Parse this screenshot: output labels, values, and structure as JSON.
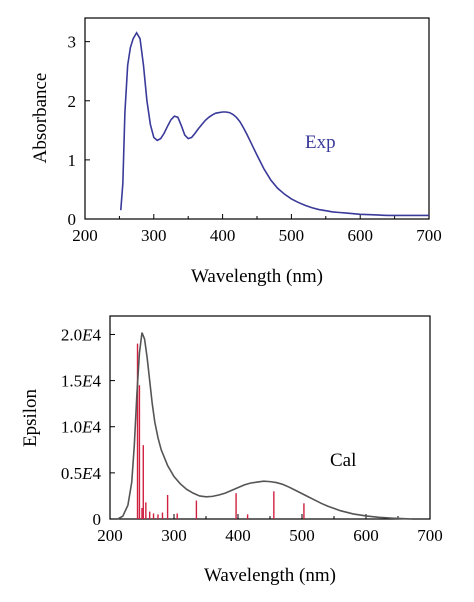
{
  "chart_data": [
    {
      "type": "line",
      "xlabel": "Wavelength (nm)",
      "ylabel": "Absorbance",
      "xlim": [
        200,
        700
      ],
      "ylim": [
        0,
        3.4
      ],
      "xticks": [
        "200",
        "300",
        "400",
        "500",
        "600",
        "700"
      ],
      "yticks": [
        "0",
        "1",
        "2",
        "3"
      ],
      "series_color": "#3a3a9a",
      "series": [
        {
          "name": "Exp",
          "x": [
            252,
            255,
            258,
            262,
            266,
            270,
            275,
            280,
            285,
            290,
            295,
            300,
            305,
            310,
            315,
            320,
            325,
            330,
            335,
            340,
            345,
            350,
            355,
            360,
            365,
            370,
            375,
            380,
            385,
            390,
            395,
            400,
            405,
            410,
            415,
            420,
            425,
            430,
            435,
            440,
            445,
            450,
            460,
            470,
            480,
            490,
            500,
            510,
            520,
            530,
            540,
            550,
            560,
            570,
            580,
            590,
            600,
            620,
            640,
            660,
            680,
            700
          ],
          "y": [
            0.15,
            0.6,
            1.8,
            2.6,
            2.9,
            3.05,
            3.15,
            3.05,
            2.6,
            2.0,
            1.6,
            1.38,
            1.33,
            1.36,
            1.45,
            1.57,
            1.68,
            1.74,
            1.72,
            1.58,
            1.42,
            1.36,
            1.38,
            1.45,
            1.53,
            1.6,
            1.67,
            1.72,
            1.76,
            1.79,
            1.8,
            1.81,
            1.81,
            1.8,
            1.77,
            1.72,
            1.65,
            1.55,
            1.44,
            1.32,
            1.2,
            1.08,
            0.85,
            0.66,
            0.52,
            0.42,
            0.34,
            0.28,
            0.23,
            0.19,
            0.16,
            0.14,
            0.12,
            0.11,
            0.1,
            0.09,
            0.08,
            0.07,
            0.06,
            0.06,
            0.06,
            0.06
          ]
        }
      ]
    },
    {
      "type": "line",
      "xlabel": "Wavelength (nm)",
      "ylabel": "Epsilon",
      "xlim": [
        200,
        700
      ],
      "ylim": [
        0,
        22000
      ],
      "xticks": [
        "200",
        "300",
        "400",
        "500",
        "600",
        "700"
      ],
      "yticks": [
        "0",
        "0.5E4",
        "1.0E4",
        "1.5E4",
        "2.0E4"
      ],
      "series_color": "#555555",
      "stick_color": "#d02040",
      "series": [
        {
          "name": "Cal",
          "x": [
            212,
            220,
            228,
            234,
            238,
            242,
            246,
            250,
            254,
            258,
            262,
            266,
            270,
            275,
            280,
            290,
            300,
            310,
            320,
            330,
            340,
            350,
            360,
            370,
            380,
            390,
            400,
            410,
            420,
            430,
            440,
            450,
            460,
            470,
            480,
            490,
            500,
            510,
            520,
            530,
            540,
            560,
            580,
            600,
            620,
            640,
            660,
            672
          ],
          "y": [
            0,
            300,
            1500,
            4000,
            8000,
            13500,
            18000,
            20200,
            19500,
            17500,
            15000,
            12500,
            10500,
            8800,
            7500,
            5800,
            4600,
            3800,
            3200,
            2800,
            2500,
            2400,
            2450,
            2600,
            2800,
            3100,
            3400,
            3700,
            3900,
            4000,
            4100,
            4050,
            3950,
            3750,
            3450,
            3100,
            2750,
            2400,
            2050,
            1700,
            1400,
            900,
            550,
            330,
            180,
            90,
            30,
            0
          ]
        }
      ],
      "sticks": [
        {
          "x": 243,
          "y": 19000
        },
        {
          "x": 246,
          "y": 14500
        },
        {
          "x": 250,
          "y": 1200
        },
        {
          "x": 252,
          "y": 8000
        },
        {
          "x": 256,
          "y": 1800
        },
        {
          "x": 262,
          "y": 800
        },
        {
          "x": 268,
          "y": 600
        },
        {
          "x": 275,
          "y": 500
        },
        {
          "x": 282,
          "y": 700
        },
        {
          "x": 290,
          "y": 2600
        },
        {
          "x": 305,
          "y": 600
        },
        {
          "x": 335,
          "y": 2000
        },
        {
          "x": 397,
          "y": 2800
        },
        {
          "x": 415,
          "y": 500
        },
        {
          "x": 456,
          "y": 3000
        },
        {
          "x": 503,
          "y": 1700
        }
      ]
    }
  ]
}
